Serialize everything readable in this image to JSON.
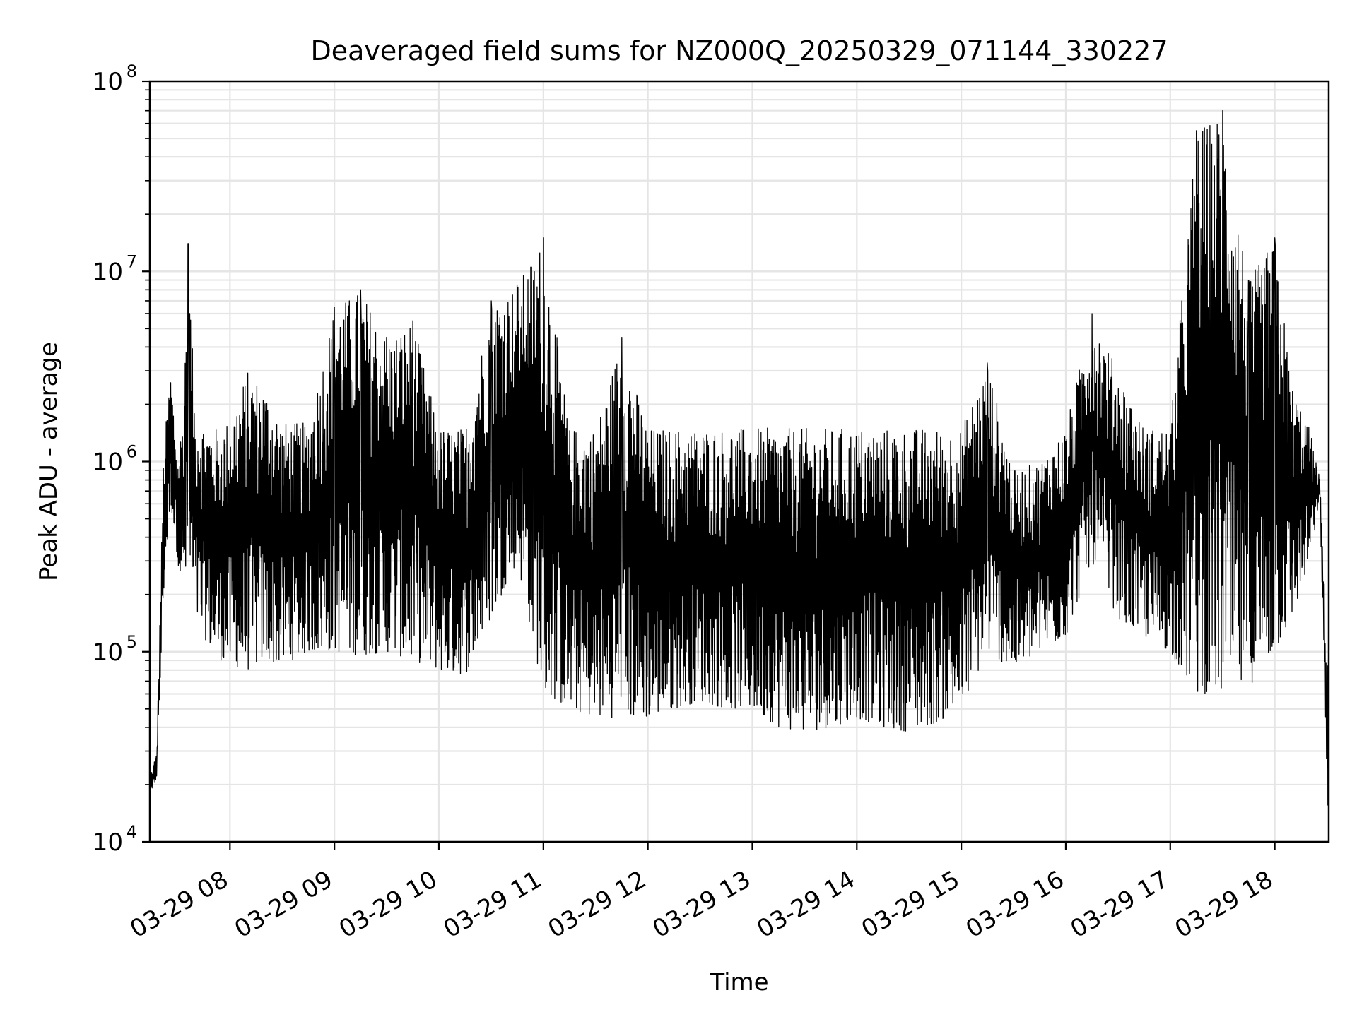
{
  "chart_data": {
    "type": "line",
    "title": "Deaveraged field sums for NZ000Q_20250329_071144_330227",
    "xlabel": "Time",
    "ylabel": "Peak ADU - average",
    "y_scale": "log",
    "ylim": [
      10000,
      100000000
    ],
    "xlim": [
      "2025-03-29 07:14",
      "2025-03-29 18:31"
    ],
    "x_ticks": [
      "03-29 08",
      "03-29 09",
      "03-29 10",
      "03-29 11",
      "03-29 12",
      "03-29 13",
      "03-29 14",
      "03-29 15",
      "03-29 16",
      "03-29 17",
      "03-29 18"
    ],
    "y_ticks": [
      {
        "value": 10000,
        "base": "10",
        "exp": "4"
      },
      {
        "value": 100000,
        "base": "10",
        "exp": "5"
      },
      {
        "value": 1000000,
        "base": "10",
        "exp": "6"
      },
      {
        "value": 10000000,
        "base": "10",
        "exp": "7"
      },
      {
        "value": 100000000,
        "base": "10",
        "exp": "8"
      }
    ],
    "grid": true,
    "line_color": "#000000",
    "grid_color": "#e5e5e5",
    "series": [
      {
        "x": [
          "2025-03-29 07:14",
          "2025-03-29 07:18",
          "2025-03-29 07:22",
          "2025-03-29 07:26",
          "2025-03-29 07:30",
          "2025-03-29 07:33",
          "2025-03-29 07:36",
          "2025-03-29 07:40",
          "2025-03-29 07:45",
          "2025-03-29 07:50",
          "2025-03-29 07:55",
          "2025-03-29 08:00",
          "2025-03-29 08:10",
          "2025-03-29 08:20",
          "2025-03-29 08:30",
          "2025-03-29 08:45",
          "2025-03-29 09:00",
          "2025-03-29 09:15",
          "2025-03-29 09:30",
          "2025-03-29 09:45",
          "2025-03-29 10:00",
          "2025-03-29 10:15",
          "2025-03-29 10:30",
          "2025-03-29 10:45",
          "2025-03-29 11:00",
          "2025-03-29 11:15",
          "2025-03-29 11:30",
          "2025-03-29 11:45",
          "2025-03-29 12:00",
          "2025-03-29 12:15",
          "2025-03-29 12:30",
          "2025-03-29 12:45",
          "2025-03-29 13:00",
          "2025-03-29 13:15",
          "2025-03-29 13:30",
          "2025-03-29 13:45",
          "2025-03-29 14:00",
          "2025-03-29 14:15",
          "2025-03-29 14:30",
          "2025-03-29 14:45",
          "2025-03-29 15:00",
          "2025-03-29 15:15",
          "2025-03-29 15:30",
          "2025-03-29 15:45",
          "2025-03-29 16:00",
          "2025-03-29 16:15",
          "2025-03-29 16:30",
          "2025-03-29 16:45",
          "2025-03-29 17:00",
          "2025-03-29 17:15",
          "2025-03-29 17:30",
          "2025-03-29 17:45",
          "2025-03-29 18:00",
          "2025-03-29 18:10",
          "2025-03-29 18:20",
          "2025-03-29 18:26",
          "2025-03-29 18:30"
        ],
        "high": [
          22000,
          30000,
          1200000,
          3000000,
          1000000,
          1800000,
          14000000,
          1800000,
          1600000,
          1500000,
          1500000,
          1700000,
          3000000,
          2500000,
          1600000,
          1600000,
          6500000,
          8000000,
          4500000,
          5500000,
          1500000,
          1500000,
          7000000,
          8500000,
          15000000,
          1500000,
          1500000,
          4500000,
          1500000,
          1500000,
          1500000,
          1500000,
          1500000,
          1500000,
          1500000,
          1500000,
          1500000,
          1500000,
          1500000,
          1500000,
          1500000,
          3300000,
          900000,
          1000000,
          1500000,
          6000000,
          3000000,
          1500000,
          1500000,
          55000000,
          70000000,
          9000000,
          15000000,
          2500000,
          1500000,
          800000,
          100000
        ],
        "low": [
          16000,
          22000,
          200000,
          600000,
          300000,
          200000,
          250000,
          150000,
          120000,
          100000,
          90000,
          85000,
          80000,
          90000,
          85000,
          100000,
          100000,
          95000,
          100000,
          90000,
          80000,
          75000,
          150000,
          300000,
          60000,
          50000,
          45000,
          45000,
          45000,
          50000,
          55000,
          50000,
          50000,
          40000,
          38000,
          40000,
          45000,
          40000,
          38000,
          42000,
          50000,
          100000,
          80000,
          100000,
          120000,
          300000,
          150000,
          120000,
          100000,
          60000,
          60000,
          65000,
          100000,
          150000,
          300000,
          600000,
          15000
        ]
      }
    ]
  }
}
